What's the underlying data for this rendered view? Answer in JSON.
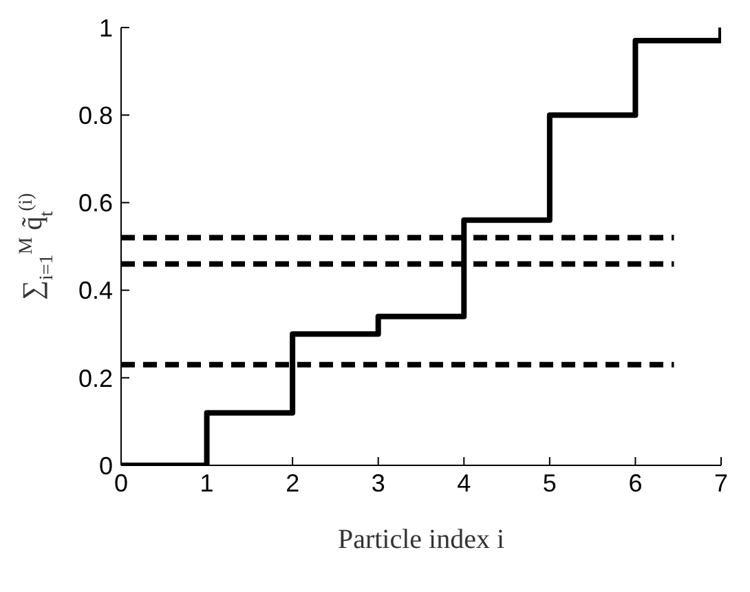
{
  "chart_data": {
    "type": "step",
    "xlabel": "Particle index i",
    "ylabel": "∑$_{i=1}$$^{M}$ q̃$_{t}$$^{(i)}$",
    "xlim": [
      0,
      7
    ],
    "ylim": [
      0,
      1
    ],
    "xticks": [
      0,
      1,
      2,
      3,
      4,
      5,
      6,
      7
    ],
    "yticks": [
      0,
      0.2,
      0.4,
      0.6,
      0.8,
      1
    ],
    "grid": false,
    "series": [
      {
        "color": "#000000",
        "line_style": "solid",
        "x": [
          0,
          1,
          2,
          3,
          4,
          5,
          6,
          7
        ],
        "values": [
          0,
          0.12,
          0.3,
          0.34,
          0.56,
          0.8,
          0.97,
          1
        ]
      },
      {
        "type": "line",
        "color": "#000000",
        "line_style": "dashed",
        "x": [
          0,
          6.45
        ],
        "values": [
          0.52,
          0.52
        ]
      },
      {
        "type": "line",
        "color": "#000000",
        "line_style": "dashed",
        "x": [
          0,
          6.45
        ],
        "values": [
          0.46,
          0.46
        ]
      },
      {
        "type": "line",
        "color": "#000000",
        "line_style": "dashed",
        "x": [
          0,
          6.45
        ],
        "values": [
          0.23,
          0.23
        ]
      }
    ]
  }
}
